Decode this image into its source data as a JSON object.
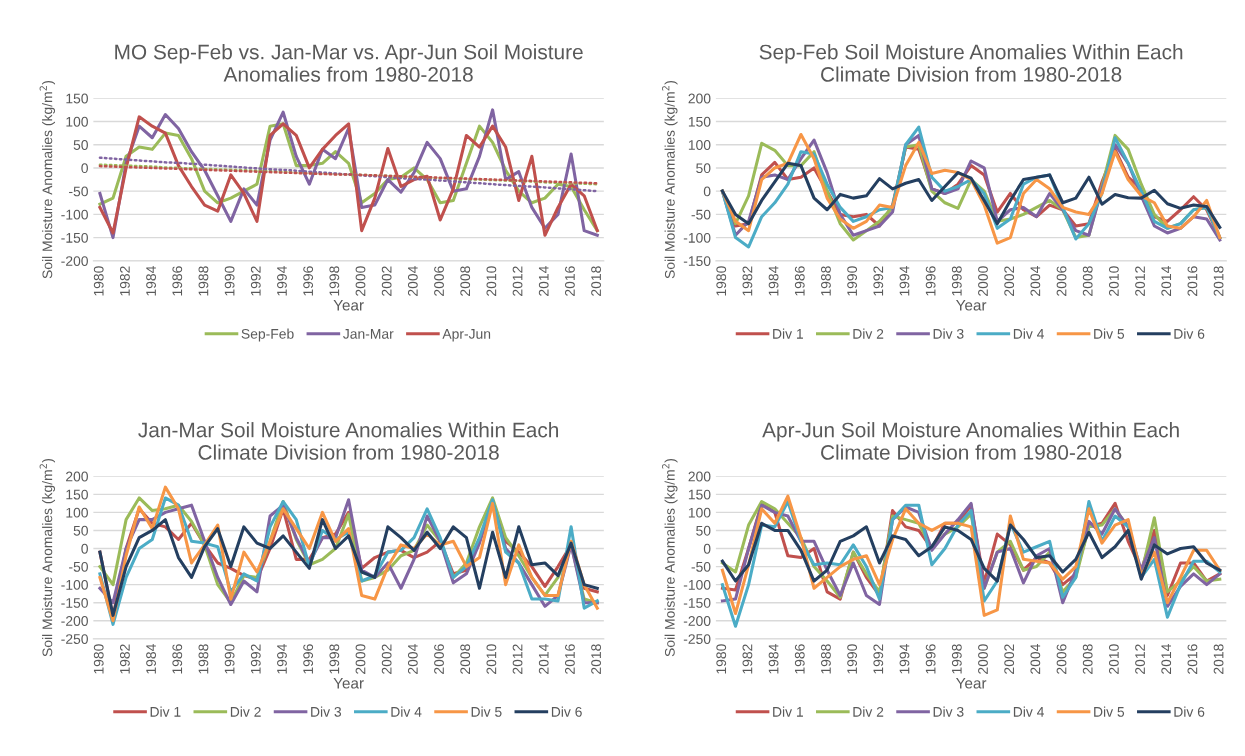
{
  "chart_data": [
    {
      "type": "line",
      "title": "MO Sep-Feb vs. Jan-Mar vs. Apr-Jun Soil Moisture Anomalies from 1980-2018",
      "xlabel": "Year",
      "ylabel": "Soil Moisture Anomalies (kg/m$^{2}$)",
      "categories": [
        "1980",
        null,
        "1982",
        null,
        "1984",
        null,
        "1986",
        null,
        "1988",
        null,
        "1990",
        null,
        "1992",
        null,
        "1994",
        null,
        "1996",
        null,
        "1998",
        null,
        "2000",
        null,
        "2002",
        null,
        "2004",
        null,
        "2006",
        null,
        "2008",
        null,
        "2010",
        null,
        "2012",
        null,
        "2014",
        null,
        "2016",
        null,
        "2018"
      ],
      "ylim": [
        -200,
        150
      ],
      "yticks": [
        -200,
        -150,
        -100,
        -50,
        0,
        50,
        100,
        150
      ],
      "grid": "y",
      "legend": "bottom",
      "marker": "none",
      "line_style": "solid",
      "series": [
        {
          "name": "Sep-Feb",
          "color": "#9bbb59",
          "values": [
            -78,
            -65,
            25,
            45,
            40,
            75,
            70,
            20,
            -50,
            -75,
            -65,
            -50,
            -35,
            90,
            95,
            5,
            5,
            10,
            35,
            10,
            -75,
            -55,
            -25,
            -20,
            0,
            -25,
            -75,
            -70,
            10,
            90,
            55,
            -5,
            -50,
            -75,
            -65,
            -35,
            -40,
            -90,
            -135
          ]
        },
        {
          "name": "Jan-Mar",
          "color": "#8064a2",
          "values": [
            -55,
            -150,
            10,
            90,
            65,
            115,
            85,
            35,
            -5,
            -60,
            -115,
            -45,
            -80,
            60,
            120,
            25,
            -35,
            40,
            20,
            85,
            -85,
            -80,
            -25,
            -52,
            -10,
            55,
            20,
            -50,
            -45,
            25,
            125,
            -25,
            -8,
            -85,
            -130,
            -100,
            30,
            -135,
            -145
          ]
        },
        {
          "name": "Apr-Jun",
          "color": "#c0504d",
          "values": [
            -85,
            -140,
            0,
            110,
            90,
            75,
            5,
            -40,
            -80,
            -93,
            -15,
            -55,
            -115,
            70,
            95,
            70,
            0,
            40,
            70,
            95,
            -135,
            -65,
            42,
            -40,
            -25,
            -18,
            -112,
            -45,
            70,
            45,
            90,
            45,
            -70,
            25,
            -145,
            -85,
            -35,
            -60,
            -135
          ]
        },
        {
          "type": "line",
          "line_style": "dotted",
          "color": "#9bbb59",
          "values": [
            7,
            6,
            5,
            4,
            3,
            1,
            0,
            -1,
            -2,
            -3,
            -4,
            -5,
            -6,
            -7,
            -8,
            -10,
            -11,
            -12,
            -13,
            -14,
            -15,
            -16,
            -17,
            -18,
            -20,
            -21,
            -22,
            -23,
            -24,
            -25,
            -26,
            -27,
            -28,
            -29,
            -31,
            -32,
            -33,
            -34,
            -35
          ]
        },
        {
          "type": "line",
          "line_style": "dotted",
          "color": "#8064a2",
          "values": [
            22,
            20,
            18,
            16,
            14,
            12,
            11,
            9,
            7,
            5,
            3,
            1,
            -1,
            -3,
            -4,
            -6,
            -8,
            -10,
            -12,
            -14,
            -16,
            -18,
            -20,
            -22,
            -24,
            -25,
            -27,
            -29,
            -31,
            -33,
            -35,
            -37,
            -39,
            -40,
            -42,
            -44,
            -46,
            -48,
            -50
          ]
        },
        {
          "type": "line",
          "line_style": "dotted",
          "color": "#c0504d",
          "values": [
            4,
            3,
            2,
            1,
            0,
            -1,
            -2,
            -3,
            -4,
            -5,
            -6,
            -7,
            -8,
            -9,
            -10,
            -11,
            -12,
            -13,
            -14,
            -14,
            -15,
            -16,
            -17,
            -18,
            -19,
            -20,
            -21,
            -22,
            -23,
            -24,
            -25,
            -26,
            -27,
            -28,
            -29,
            -30,
            -31,
            -32,
            -33
          ]
        }
      ]
    },
    {
      "type": "line",
      "title": "Sep-Feb Soil Moisture Anomalies Within Each Climate Division from 1980-2018",
      "xlabel": "Year",
      "ylabel": "Soil Moisture Anomalies (kg/m$^{2}$)",
      "categories": [
        "1980",
        null,
        "1982",
        null,
        "1984",
        null,
        "1986",
        null,
        "1988",
        null,
        "1990",
        null,
        "1992",
        null,
        "1994",
        null,
        "1996",
        null,
        "1998",
        null,
        "2000",
        null,
        "2002",
        null,
        "2004",
        null,
        "2006",
        null,
        "2008",
        null,
        "2010",
        null,
        "2012",
        null,
        "2014",
        null,
        "2016",
        null,
        "2018"
      ],
      "ylim": [
        -150,
        200
      ],
      "yticks": [
        -150,
        -100,
        -50,
        0,
        50,
        100,
        150,
        200
      ],
      "grid": "y",
      "legend": "bottom",
      "marker": "none",
      "line_style": "solid",
      "series": [
        {
          "name": "Div 1",
          "color": "#c0504d",
          "values": [
            0,
            -75,
            -70,
            35,
            62,
            25,
            30,
            50,
            0,
            -50,
            -55,
            -50,
            -75,
            -30,
            95,
            90,
            5,
            -5,
            15,
            55,
            35,
            -45,
            -5,
            -40,
            -55,
            -30,
            -40,
            -75,
            -70,
            20,
            90,
            30,
            5,
            -55,
            -65,
            -40,
            -12,
            -40,
            -100
          ]
        },
        {
          "name": "Div 2",
          "color": "#9bbb59",
          "values": [
            0,
            -70,
            -10,
            103,
            88,
            55,
            55,
            85,
            0,
            -70,
            -105,
            -85,
            -65,
            -35,
            95,
            100,
            0,
            -25,
            -37,
            25,
            0,
            -65,
            -60,
            -50,
            -35,
            -20,
            -40,
            -100,
            -95,
            10,
            120,
            90,
            15,
            -50,
            -80,
            -70,
            -40,
            -35,
            -100
          ]
        },
        {
          "name": "Div 3",
          "color": "#8064a2",
          "values": [
            0,
            -95,
            -65,
            30,
            35,
            25,
            70,
            110,
            40,
            -50,
            -95,
            -85,
            -75,
            -45,
            100,
            120,
            5,
            -5,
            5,
            65,
            50,
            -65,
            -40,
            -35,
            -55,
            -5,
            -40,
            -85,
            -95,
            5,
            100,
            60,
            -10,
            -75,
            -90,
            -80,
            -55,
            -60,
            -105
          ]
        },
        {
          "name": "Div 4",
          "color": "#4bacc6",
          "values": [
            0,
            -100,
            -120,
            -55,
            -25,
            15,
            85,
            80,
            15,
            -35,
            -65,
            -55,
            -40,
            -35,
            100,
            138,
            30,
            0,
            10,
            25,
            -5,
            -80,
            -60,
            15,
            30,
            35,
            -35,
            -103,
            -70,
            -5,
            115,
            60,
            0,
            -65,
            -80,
            -70,
            -40,
            -35,
            -100
          ]
        },
        {
          "name": "Div 5",
          "color": "#f79646",
          "values": [
            0,
            -65,
            -85,
            25,
            50,
            60,
            122,
            70,
            -15,
            -60,
            -80,
            -65,
            -30,
            -35,
            55,
            105,
            38,
            45,
            40,
            25,
            -30,
            -112,
            -100,
            -5,
            25,
            5,
            -35,
            -45,
            -50,
            -5,
            85,
            25,
            -10,
            -25,
            -75,
            -80,
            -55,
            -20,
            -100
          ]
        },
        {
          "name": "Div 6",
          "color": "#243f60",
          "values": [
            0,
            -50,
            -70,
            -20,
            20,
            60,
            55,
            -15,
            -40,
            -7,
            -15,
            -10,
            27,
            5,
            17,
            25,
            -20,
            10,
            40,
            28,
            -20,
            -70,
            -20,
            25,
            30,
            35,
            -25,
            -15,
            30,
            -28,
            -7,
            -14,
            -15,
            2,
            -27,
            -37,
            -30,
            -33,
            -78
          ]
        }
      ]
    },
    {
      "type": "line",
      "title": "Jan-Mar Soil Moisture Anomalies Within Each Climate Division from 1980-2018",
      "xlabel": "Year",
      "ylabel": "Soil Moisture Anomalies (kg/m$^{2}$)",
      "categories": [
        "1980",
        null,
        "1982",
        null,
        "1984",
        null,
        "1986",
        null,
        "1988",
        null,
        "1990",
        null,
        "1992",
        null,
        "1994",
        null,
        "1996",
        null,
        "1998",
        null,
        "2000",
        null,
        "2002",
        null,
        "2004",
        null,
        "2006",
        null,
        "2008",
        null,
        "2010",
        null,
        "2012",
        null,
        "2014",
        null,
        "2016",
        null,
        "2018"
      ],
      "ylim": [
        -250,
        200
      ],
      "yticks": [
        -250,
        -200,
        -150,
        -100,
        -50,
        0,
        50,
        100,
        150,
        200
      ],
      "grid": "y",
      "legend": "bottom",
      "marker": "none",
      "line_style": "solid",
      "series": [
        {
          "name": "Div 1",
          "color": "#c0504d",
          "values": [
            -10,
            -190,
            0,
            110,
            70,
            60,
            25,
            70,
            10,
            -40,
            -55,
            -75,
            -85,
            0,
            110,
            -30,
            -30,
            30,
            40,
            100,
            -55,
            -25,
            -10,
            -5,
            -25,
            -10,
            20,
            -70,
            -60,
            20,
            130,
            20,
            -10,
            -50,
            -105,
            -50,
            10,
            -110,
            -120
          ]
        },
        {
          "name": "Div 2",
          "color": "#9bbb59",
          "values": [
            -50,
            -100,
            80,
            140,
            105,
            110,
            120,
            75,
            10,
            -100,
            -150,
            -75,
            -80,
            20,
            130,
            25,
            -45,
            -30,
            0,
            95,
            -90,
            -80,
            -60,
            -20,
            -5,
            65,
            20,
            -80,
            -40,
            60,
            140,
            30,
            -20,
            -80,
            -130,
            -80,
            10,
            -140,
            -150
          ]
        },
        {
          "name": "Div 3",
          "color": "#8064a2",
          "values": [
            -110,
            -150,
            0,
            80,
            80,
            100,
            110,
            120,
            20,
            -80,
            -155,
            -90,
            -120,
            90,
            120,
            30,
            -40,
            30,
            30,
            135,
            -60,
            -80,
            -40,
            -110,
            -30,
            90,
            20,
            -95,
            -70,
            15,
            130,
            0,
            -40,
            -100,
            -160,
            -130,
            10,
            -150,
            -150
          ]
        },
        {
          "name": "Div 4",
          "color": "#4bacc6",
          "values": [
            -70,
            -210,
            -80,
            0,
            25,
            140,
            120,
            20,
            15,
            5,
            -120,
            -70,
            -90,
            60,
            130,
            80,
            -50,
            50,
            25,
            45,
            -90,
            -75,
            -10,
            -5,
            30,
            110,
            30,
            -80,
            -50,
            30,
            135,
            -10,
            -40,
            -140,
            -140,
            -145,
            60,
            -165,
            -145
          ]
        },
        {
          "name": "Div 5",
          "color": "#f79646",
          "values": [
            -80,
            -200,
            -20,
            115,
            55,
            170,
            110,
            -40,
            10,
            65,
            -140,
            -10,
            -65,
            20,
            110,
            55,
            0,
            100,
            20,
            55,
            -130,
            -140,
            -50,
            10,
            0,
            40,
            10,
            20,
            -50,
            -25,
            125,
            -100,
            10,
            -80,
            -130,
            -130,
            20,
            -100,
            -165
          ]
        },
        {
          "name": "Div 6",
          "color": "#243f60",
          "values": [
            -10,
            -185,
            -50,
            30,
            50,
            80,
            -25,
            -80,
            5,
            55,
            -50,
            60,
            15,
            0,
            35,
            -10,
            -55,
            80,
            0,
            35,
            -65,
            -80,
            60,
            30,
            -5,
            45,
            0,
            60,
            30,
            -110,
            45,
            -80,
            60,
            -45,
            -40,
            -75,
            15,
            -100,
            -110
          ]
        }
      ]
    },
    {
      "type": "line",
      "title": "Apr-Jun Soil Moisture Anomalies Within Each Climate Division from 1980-2018",
      "xlabel": "Year",
      "ylabel": "Soil Moisture Anomalies (kg/m$^{2}$)",
      "categories": [
        "1980",
        null,
        "1982",
        null,
        "1984",
        null,
        "1986",
        null,
        "1988",
        null,
        "1990",
        null,
        "1992",
        null,
        "1994",
        null,
        "1996",
        null,
        "1998",
        null,
        "2000",
        null,
        "2002",
        null,
        "2004",
        null,
        "2006",
        null,
        "2008",
        null,
        "2010",
        null,
        "2012",
        null,
        "2014",
        null,
        "2016",
        null,
        "2018"
      ],
      "ylim": [
        -250,
        200
      ],
      "yticks": [
        -250,
        -200,
        -150,
        -100,
        -50,
        0,
        50,
        100,
        150,
        200
      ],
      "grid": "y",
      "legend": "bottom",
      "marker": "none",
      "line_style": "solid",
      "series": [
        {
          "name": "Div 1",
          "color": "#c0504d",
          "values": [
            -110,
            -115,
            0,
            125,
            100,
            -20,
            -25,
            0,
            -120,
            -140,
            -10,
            -80,
            -130,
            105,
            60,
            50,
            0,
            70,
            70,
            120,
            -95,
            40,
            10,
            -60,
            -25,
            -40,
            -100,
            -70,
            60,
            70,
            125,
            20,
            -60,
            50,
            -130,
            -40,
            -40,
            -90,
            -70
          ]
        },
        {
          "name": "Div 2",
          "color": "#9bbb59",
          "values": [
            -40,
            -65,
            65,
            130,
            110,
            70,
            30,
            -50,
            -90,
            -135,
            -10,
            -70,
            -120,
            90,
            80,
            70,
            0,
            40,
            60,
            95,
            -110,
            -10,
            20,
            -60,
            -50,
            -10,
            -120,
            -80,
            60,
            65,
            110,
            60,
            -70,
            85,
            -120,
            -90,
            -50,
            -90,
            -85
          ]
        },
        {
          "name": "Div 3",
          "color": "#8064a2",
          "values": [
            -145,
            -140,
            0,
            120,
            100,
            90,
            20,
            20,
            -60,
            -130,
            -40,
            -130,
            -155,
            80,
            115,
            100,
            -5,
            40,
            80,
            125,
            -110,
            -10,
            0,
            -95,
            -20,
            0,
            -150,
            -60,
            75,
            40,
            110,
            60,
            -60,
            30,
            -160,
            -105,
            -70,
            -100,
            -70
          ]
        },
        {
          "name": "Div 4",
          "color": "#4bacc6",
          "values": [
            -100,
            -215,
            -100,
            65,
            60,
            130,
            20,
            -45,
            -40,
            -45,
            10,
            -50,
            -140,
            80,
            120,
            120,
            -45,
            0,
            65,
            105,
            -145,
            -90,
            70,
            -10,
            5,
            20,
            -135,
            -80,
            130,
            20,
            90,
            60,
            -80,
            -30,
            -190,
            -100,
            -35,
            -35,
            -65
          ]
        },
        {
          "name": "Div 5",
          "color": "#f79646",
          "values": [
            -60,
            -180,
            -45,
            110,
            70,
            145,
            30,
            -110,
            -80,
            -50,
            -30,
            -20,
            -100,
            25,
            110,
            70,
            50,
            70,
            70,
            60,
            -185,
            -170,
            90,
            -30,
            -35,
            -40,
            -85,
            -50,
            110,
            15,
            65,
            80,
            -75,
            -10,
            -150,
            -80,
            -5,
            -5,
            -60
          ]
        },
        {
          "name": "Div 6",
          "color": "#243f60",
          "values": [
            -35,
            -90,
            -45,
            70,
            50,
            50,
            -5,
            -90,
            -60,
            20,
            35,
            60,
            -40,
            35,
            25,
            -20,
            5,
            60,
            50,
            25,
            -55,
            -90,
            65,
            25,
            -25,
            -20,
            -65,
            -30,
            45,
            -25,
            5,
            50,
            -85,
            10,
            -15,
            0,
            5,
            -40,
            -60
          ]
        }
      ]
    }
  ]
}
